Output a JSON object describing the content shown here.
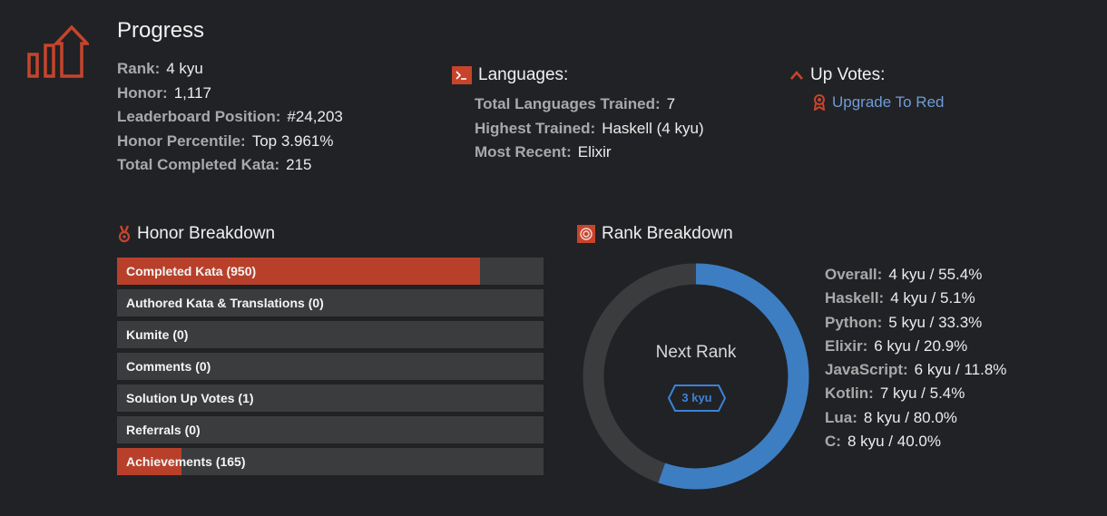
{
  "page": {
    "title": "Progress"
  },
  "stats": [
    {
      "label": "Rank:",
      "value": "4 kyu"
    },
    {
      "label": "Honor:",
      "value": "1,117"
    },
    {
      "label": "Leaderboard Position:",
      "value": "#24,203"
    },
    {
      "label": "Honor Percentile:",
      "value": "Top 3.961%"
    },
    {
      "label": "Total Completed Kata:",
      "value": "215"
    }
  ],
  "languages": {
    "heading": "Languages:",
    "items": [
      {
        "label": "Total Languages Trained:",
        "value": "7"
      },
      {
        "label": "Highest Trained:",
        "value": "Haskell (4 kyu)"
      },
      {
        "label": "Most Recent:",
        "value": "Elixir"
      }
    ]
  },
  "upvotes": {
    "heading": "Up Votes:",
    "link": "Upgrade To Red"
  },
  "honor_breakdown": {
    "heading": "Honor Breakdown",
    "bars": [
      {
        "label": "Completed Kata (950)",
        "fill_fraction": 0.85
      },
      {
        "label": "Authored Kata & Translations (0)",
        "fill_fraction": 0
      },
      {
        "label": "Kumite (0)",
        "fill_fraction": 0
      },
      {
        "label": "Comments (0)",
        "fill_fraction": 0
      },
      {
        "label": "Solution Up Votes (1)",
        "fill_fraction": 0
      },
      {
        "label": "Referrals (0)",
        "fill_fraction": 0
      },
      {
        "label": "Achievements (165)",
        "fill_fraction": 0.15
      }
    ]
  },
  "rank_breakdown": {
    "heading": "Rank Breakdown",
    "center_label": "Next Rank",
    "next_rank": "3 kyu",
    "progress_fraction": 0.554,
    "items": [
      {
        "label": "Overall:",
        "value": "4 kyu / 55.4%"
      },
      {
        "label": "Haskell:",
        "value": "4 kyu / 5.1%"
      },
      {
        "label": "Python:",
        "value": "5 kyu / 33.3%"
      },
      {
        "label": "Elixir:",
        "value": "6 kyu / 20.9%"
      },
      {
        "label": "JavaScript:",
        "value": "6 kyu / 11.8%"
      },
      {
        "label": "Kotlin:",
        "value": "7 kyu / 5.4%"
      },
      {
        "label": "Lua:",
        "value": "8 kyu / 80.0%"
      },
      {
        "label": "C:",
        "value": "8 kyu / 40.0%"
      }
    ]
  },
  "colors": {
    "accent_red": "#b8402b",
    "progress_blue": "#3d7ec3",
    "track_gray": "#3b3c3e",
    "link_blue": "#6f9bd8"
  },
  "icons": [
    "progress-chart-icon",
    "terminal-icon",
    "chevron-up-icon",
    "award-ribbon-icon",
    "medal-icon",
    "target-icon"
  ]
}
